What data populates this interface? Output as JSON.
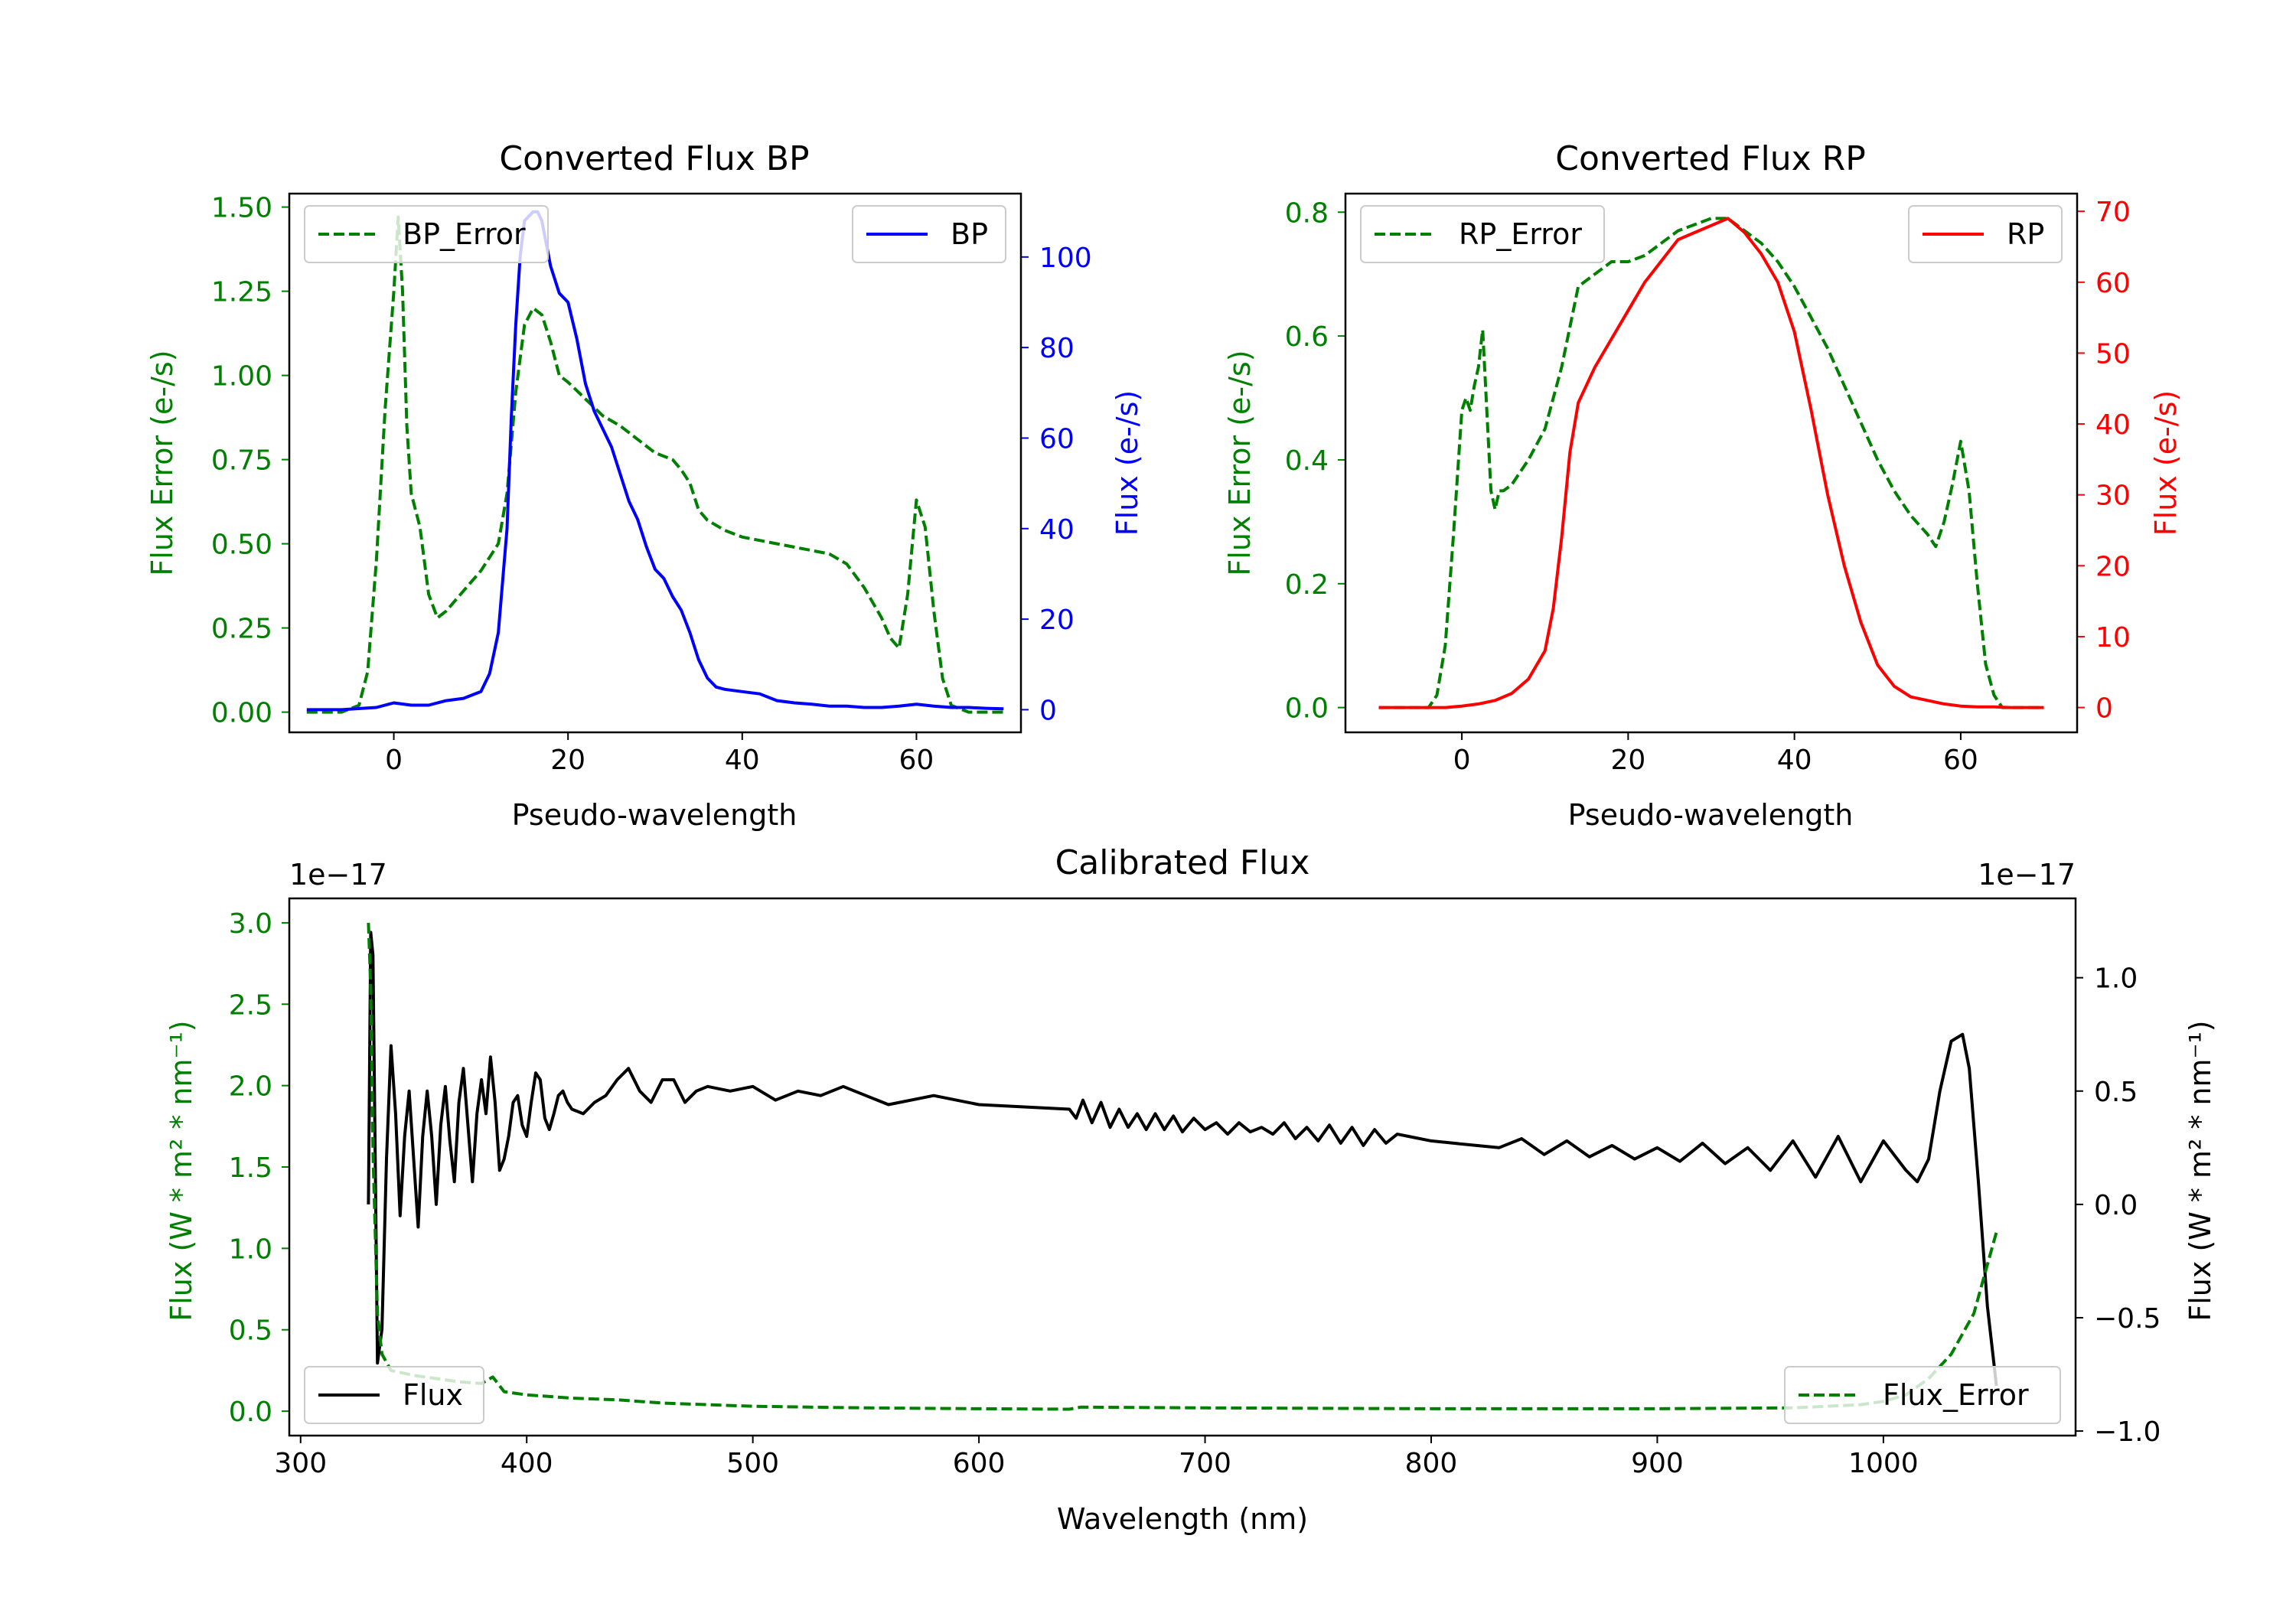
{
  "colors": {
    "green": "#008000",
    "blue": "#0000ff",
    "red": "#ff0000",
    "black": "#000000"
  },
  "chart_data": [
    {
      "id": "bp",
      "type": "line",
      "title": "Converted Flux BP",
      "xlabel": "Pseudo-wavelength",
      "ylabel_left": "Flux Error (e-/s)",
      "ylabel_right": "Flux (e-/s)",
      "xlim": [
        -12,
        72
      ],
      "ylim_left": [
        -0.06,
        1.54
      ],
      "ylim_right": [
        -5,
        114
      ],
      "xticks": [
        0,
        20,
        40,
        60
      ],
      "xtick_labels": [
        "0",
        "20",
        "40",
        "60"
      ],
      "yticks_left": [
        0,
        0.25,
        0.5,
        0.75,
        1.0,
        1.25,
        1.5
      ],
      "ytick_labels_left": [
        "0.00",
        "0.25",
        "0.50",
        "0.75",
        "1.00",
        "1.25",
        "1.50"
      ],
      "yticks_right": [
        0,
        20,
        40,
        60,
        80,
        100
      ],
      "ytick_labels_right": [
        "0",
        "20",
        "40",
        "60",
        "80",
        "100"
      ],
      "left_axis_color": "#008000",
      "right_axis_color": "#0000ff",
      "series": [
        {
          "name": "BP_Error",
          "axis": "left",
          "color": "#008000",
          "style": "dashed",
          "legend": "top-left",
          "x": [
            -10,
            -6,
            -4,
            -3,
            -2,
            -1,
            0,
            0.5,
            1,
            1.5,
            2,
            3,
            4,
            5,
            6,
            8,
            10,
            12,
            13,
            14,
            15,
            16,
            17,
            18,
            19,
            20,
            22,
            24,
            26,
            28,
            30,
            32,
            33,
            34,
            35,
            36,
            38,
            40,
            42,
            44,
            46,
            48,
            50,
            52,
            54,
            56,
            57,
            58,
            59,
            60,
            61,
            62,
            63,
            64,
            66,
            68,
            70
          ],
          "y": [
            0.0,
            0.0,
            0.02,
            0.12,
            0.45,
            0.9,
            1.25,
            1.47,
            1.25,
            0.85,
            0.65,
            0.55,
            0.35,
            0.28,
            0.3,
            0.36,
            0.42,
            0.5,
            0.65,
            0.95,
            1.15,
            1.2,
            1.18,
            1.1,
            1.0,
            0.98,
            0.93,
            0.88,
            0.85,
            0.81,
            0.77,
            0.75,
            0.72,
            0.68,
            0.6,
            0.57,
            0.54,
            0.52,
            0.51,
            0.5,
            0.49,
            0.48,
            0.47,
            0.44,
            0.37,
            0.28,
            0.22,
            0.19,
            0.35,
            0.63,
            0.55,
            0.3,
            0.1,
            0.02,
            0.0,
            0.0,
            0.0
          ]
        },
        {
          "name": "BP",
          "axis": "right",
          "color": "#0000ff",
          "style": "solid",
          "legend": "top-right",
          "x": [
            -10,
            -6,
            -2,
            0,
            2,
            4,
            6,
            8,
            10,
            11,
            12,
            13,
            13.5,
            14,
            14.5,
            15,
            15.5,
            16,
            16.5,
            17,
            18,
            19,
            20,
            21,
            22,
            23,
            24,
            25,
            26,
            27,
            28,
            29,
            30,
            31,
            32,
            33,
            34,
            35,
            36,
            37,
            38,
            40,
            42,
            44,
            46,
            48,
            50,
            52,
            54,
            56,
            58,
            60,
            62,
            64,
            66,
            68,
            70
          ],
          "y": [
            0,
            0,
            0.5,
            1.5,
            1,
            1,
            2,
            2.5,
            4,
            8,
            17,
            40,
            65,
            85,
            100,
            108,
            109,
            110,
            110,
            108,
            98,
            92,
            90,
            82,
            72,
            66,
            62,
            58,
            52,
            46,
            42,
            36,
            31,
            29,
            25,
            22,
            17,
            11,
            7,
            5,
            4.5,
            4,
            3.5,
            2,
            1.5,
            1.2,
            0.8,
            0.8,
            0.5,
            0.5,
            0.8,
            1.2,
            0.8,
            0.5,
            0.5,
            0.3,
            0.2
          ]
        }
      ]
    },
    {
      "id": "rp",
      "type": "line",
      "title": "Converted Flux RP",
      "xlabel": "Pseudo-wavelength",
      "ylabel_left": "Flux Error (e-/s)",
      "ylabel_right": "Flux (e-/s)",
      "xlim": [
        -14,
        74
      ],
      "ylim_left": [
        -0.04,
        0.83
      ],
      "ylim_right": [
        -3.5,
        72.5
      ],
      "xticks": [
        0,
        20,
        40,
        60
      ],
      "xtick_labels": [
        "0",
        "20",
        "40",
        "60"
      ],
      "yticks_left": [
        0,
        0.2,
        0.4,
        0.6,
        0.8
      ],
      "ytick_labels_left": [
        "0.0",
        "0.2",
        "0.4",
        "0.6",
        "0.8"
      ],
      "yticks_right": [
        0,
        10,
        20,
        30,
        40,
        50,
        60,
        70
      ],
      "ytick_labels_right": [
        "0",
        "10",
        "20",
        "30",
        "40",
        "50",
        "60",
        "70"
      ],
      "left_axis_color": "#008000",
      "right_axis_color": "#ff0000",
      "series": [
        {
          "name": "RP_Error",
          "axis": "left",
          "color": "#008000",
          "style": "dashed",
          "legend": "top-left",
          "x": [
            -10,
            -4,
            -3,
            -2,
            -1,
            0,
            0.5,
            1,
            1.5,
            2,
            2.5,
            3,
            3.5,
            4,
            4.5,
            5,
            6,
            8,
            10,
            12,
            14,
            16,
            18,
            20,
            22,
            24,
            26,
            28,
            30,
            32,
            34,
            36,
            38,
            40,
            42,
            44,
            46,
            48,
            50,
            52,
            54,
            56,
            57,
            58,
            59,
            60,
            61,
            62,
            63,
            64,
            65,
            66,
            70
          ],
          "y": [
            0.0,
            0.0,
            0.02,
            0.1,
            0.28,
            0.48,
            0.5,
            0.48,
            0.52,
            0.55,
            0.61,
            0.48,
            0.35,
            0.32,
            0.35,
            0.35,
            0.36,
            0.4,
            0.45,
            0.55,
            0.68,
            0.7,
            0.72,
            0.72,
            0.73,
            0.75,
            0.77,
            0.78,
            0.79,
            0.79,
            0.77,
            0.75,
            0.72,
            0.68,
            0.63,
            0.58,
            0.52,
            0.46,
            0.4,
            0.35,
            0.31,
            0.28,
            0.26,
            0.3,
            0.36,
            0.43,
            0.35,
            0.2,
            0.07,
            0.02,
            0.0,
            0.0,
            0.0
          ]
        },
        {
          "name": "RP",
          "axis": "right",
          "color": "#ff0000",
          "style": "solid",
          "legend": "top-right",
          "x": [
            -10,
            -2,
            0,
            2,
            4,
            6,
            8,
            10,
            11,
            12,
            13,
            14,
            16,
            18,
            20,
            22,
            24,
            26,
            28,
            30,
            32,
            34,
            36,
            38,
            40,
            42,
            44,
            46,
            48,
            50,
            52,
            54,
            56,
            58,
            60,
            62,
            64,
            66,
            68,
            70
          ],
          "y": [
            0,
            0,
            0.2,
            0.5,
            1,
            2,
            4,
            8,
            14,
            24,
            36,
            43,
            48,
            52,
            56,
            60,
            63,
            66,
            67,
            68,
            69,
            67,
            64,
            60,
            53,
            42,
            30,
            20,
            12,
            6,
            3,
            1.5,
            1.0,
            0.5,
            0.2,
            0.1,
            0.1,
            0,
            0,
            0
          ]
        }
      ]
    },
    {
      "id": "calibrated",
      "type": "line",
      "title": "Calibrated Flux",
      "xlabel": "Wavelength (nm)",
      "ylabel_left": "Flux (W * m² * nm⁻¹)",
      "ylabel_right": "Flux (W * m² * nm⁻¹)",
      "offset_left": "1e−17",
      "offset_right": "1e−17",
      "xlim": [
        295,
        1085
      ],
      "ylim_left": [
        -0.15,
        3.15
      ],
      "ylim_right": [
        -1.02,
        1.35
      ],
      "xticks": [
        300,
        400,
        500,
        600,
        700,
        800,
        900,
        1000
      ],
      "xtick_labels": [
        "300",
        "400",
        "500",
        "600",
        "700",
        "800",
        "900",
        "1000"
      ],
      "yticks_left": [
        0,
        0.5,
        1.0,
        1.5,
        2.0,
        2.5,
        3.0
      ],
      "ytick_labels_left": [
        "0.0",
        "0.5",
        "1.0",
        "1.5",
        "2.0",
        "2.5",
        "3.0"
      ],
      "yticks_right": [
        -1.0,
        -0.5,
        0.0,
        0.5,
        1.0
      ],
      "ytick_labels_right": [
        "−1.0",
        "−0.5",
        "0.0",
        "0.5",
        "1.0"
      ],
      "left_axis_color": "#008000",
      "right_axis_color": "#000000",
      "series": [
        {
          "name": "Flux",
          "axis": "right",
          "color": "#000000",
          "style": "solid",
          "legend": "bottom-left",
          "x": [
            330,
            331,
            332,
            333,
            334,
            336,
            338,
            340,
            342,
            344,
            346,
            348,
            350,
            352,
            354,
            356,
            358,
            360,
            362,
            364,
            366,
            368,
            370,
            372,
            374,
            376,
            378,
            380,
            382,
            384,
            386,
            388,
            390,
            392,
            394,
            396,
            398,
            400,
            402,
            404,
            406,
            408,
            410,
            412,
            414,
            416,
            418,
            420,
            425,
            430,
            435,
            440,
            445,
            450,
            455,
            460,
            465,
            470,
            475,
            480,
            490,
            500,
            510,
            520,
            530,
            540,
            560,
            580,
            600,
            620,
            640,
            643,
            646,
            650,
            654,
            658,
            662,
            666,
            670,
            674,
            678,
            682,
            686,
            690,
            695,
            700,
            705,
            710,
            715,
            720,
            725,
            730,
            735,
            740,
            745,
            750,
            755,
            760,
            765,
            770,
            775,
            780,
            785,
            790,
            800,
            810,
            820,
            830,
            840,
            850,
            860,
            870,
            880,
            890,
            900,
            910,
            920,
            930,
            940,
            950,
            960,
            970,
            980,
            990,
            1000,
            1010,
            1015,
            1020,
            1025,
            1030,
            1035,
            1038,
            1042,
            1046,
            1050
          ],
          "y": [
            0.0,
            1.2,
            1.1,
            0.2,
            -0.7,
            -0.55,
            0.2,
            0.7,
            0.4,
            -0.05,
            0.3,
            0.5,
            0.2,
            -0.1,
            0.3,
            0.5,
            0.3,
            0.0,
            0.35,
            0.52,
            0.28,
            0.1,
            0.45,
            0.6,
            0.35,
            0.1,
            0.4,
            0.55,
            0.4,
            0.65,
            0.45,
            0.15,
            0.2,
            0.3,
            0.45,
            0.48,
            0.35,
            0.3,
            0.45,
            0.58,
            0.55,
            0.38,
            0.33,
            0.4,
            0.48,
            0.5,
            0.45,
            0.42,
            0.4,
            0.45,
            0.48,
            0.55,
            0.6,
            0.5,
            0.45,
            0.55,
            0.55,
            0.45,
            0.5,
            0.52,
            0.5,
            0.52,
            0.46,
            0.5,
            0.48,
            0.52,
            0.44,
            0.48,
            0.44,
            0.43,
            0.42,
            0.38,
            0.46,
            0.36,
            0.45,
            0.34,
            0.42,
            0.34,
            0.4,
            0.33,
            0.4,
            0.33,
            0.39,
            0.32,
            0.38,
            0.33,
            0.36,
            0.31,
            0.36,
            0.32,
            0.34,
            0.31,
            0.36,
            0.29,
            0.34,
            0.28,
            0.35,
            0.27,
            0.34,
            0.26,
            0.33,
            0.27,
            0.31,
            0.3,
            0.28,
            0.27,
            0.26,
            0.25,
            0.29,
            0.22,
            0.28,
            0.21,
            0.26,
            0.2,
            0.25,
            0.19,
            0.27,
            0.18,
            0.25,
            0.15,
            0.28,
            0.12,
            0.3,
            0.1,
            0.28,
            0.15,
            0.1,
            0.2,
            0.5,
            0.72,
            0.75,
            0.6,
            0.1,
            -0.45,
            -0.8
          ]
        },
        {
          "name": "Flux_Error",
          "axis": "left",
          "color": "#008000",
          "style": "dashed",
          "legend": "bottom-right",
          "x": [
            330,
            331,
            332,
            334,
            336,
            340,
            350,
            360,
            370,
            380,
            385,
            390,
            400,
            410,
            420,
            440,
            460,
            480,
            500,
            550,
            600,
            640,
            645,
            700,
            800,
            900,
            960,
            990,
            1000,
            1010,
            1020,
            1030,
            1040,
            1045,
            1050
          ],
          "y": [
            3.0,
            2.6,
            1.6,
            0.6,
            0.35,
            0.25,
            0.22,
            0.2,
            0.18,
            0.17,
            0.21,
            0.12,
            0.1,
            0.09,
            0.08,
            0.07,
            0.05,
            0.04,
            0.03,
            0.02,
            0.015,
            0.012,
            0.025,
            0.02,
            0.015,
            0.015,
            0.02,
            0.04,
            0.06,
            0.1,
            0.2,
            0.35,
            0.6,
            0.85,
            1.1
          ]
        }
      ]
    }
  ]
}
